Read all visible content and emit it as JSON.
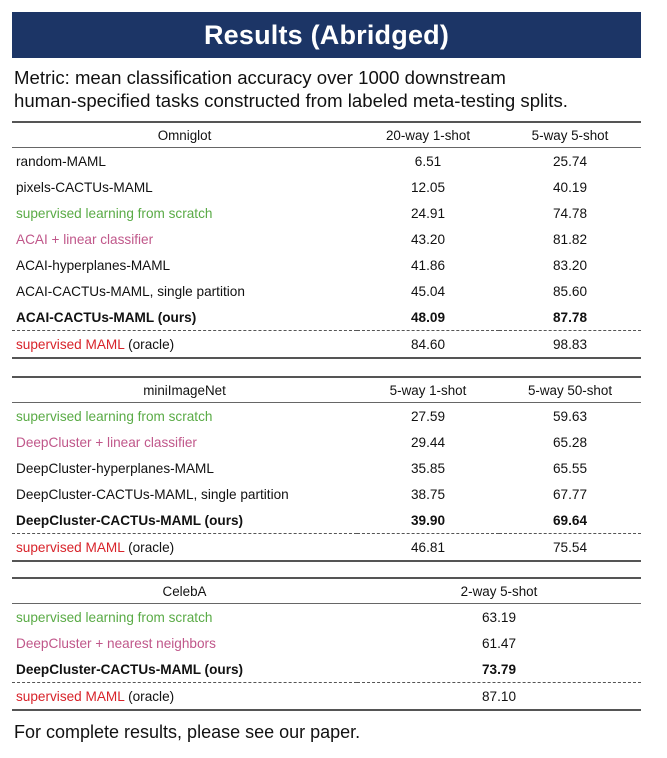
{
  "title": "Results (Abridged)",
  "metric": {
    "line1": "Metric: mean classification accuracy over 1000 downstream",
    "line2": "human-specified tasks constructed from labeled meta-testing splits."
  },
  "colors": {
    "banner": "#1c3566",
    "green": "#5aab46",
    "pink": "#c0578a",
    "red": "#d8232a"
  },
  "tables": [
    {
      "headers": [
        "Omniglot",
        "20-way 1-shot",
        "5-way 5-shot"
      ],
      "rows": [
        {
          "name": "random-MAML",
          "suffix": "",
          "color": "default",
          "values": [
            "6.51",
            "25.74"
          ]
        },
        {
          "name": "pixels-CACTUs-MAML",
          "suffix": "",
          "color": "default",
          "values": [
            "12.05",
            "40.19"
          ]
        },
        {
          "name": "supervised learning from scratch",
          "suffix": "",
          "color": "green",
          "values": [
            "24.91",
            "74.78"
          ]
        },
        {
          "name": "ACAI + linear classifier",
          "suffix": "",
          "color": "pink",
          "values": [
            "43.20",
            "81.82"
          ]
        },
        {
          "name": "ACAI-hyperplanes-MAML",
          "suffix": "",
          "color": "default",
          "values": [
            "41.86",
            "83.20"
          ]
        },
        {
          "name": "ACAI-CACTUs-MAML, single partition",
          "suffix": "",
          "color": "default",
          "values": [
            "45.04",
            "85.60"
          ]
        },
        {
          "name": "ACAI-CACTUs-MAML (ours)",
          "suffix": "",
          "color": "default",
          "bold": true,
          "values": [
            "48.09",
            "87.78"
          ]
        },
        {
          "name": "supervised MAML",
          "suffix": " (oracle)",
          "color": "red",
          "values": [
            "84.60",
            "98.83"
          ]
        }
      ]
    },
    {
      "headers": [
        "miniImageNet",
        "5-way 1-shot",
        "5-way 50-shot"
      ],
      "rows": [
        {
          "name": "supervised learning from scratch",
          "suffix": "",
          "color": "green",
          "values": [
            "27.59",
            "59.63"
          ]
        },
        {
          "name": "DeepCluster + linear classifier",
          "suffix": "",
          "color": "pink",
          "values": [
            "29.44",
            "65.28"
          ]
        },
        {
          "name": "DeepCluster-hyperplanes-MAML",
          "suffix": "",
          "color": "default",
          "values": [
            "35.85",
            "65.55"
          ]
        },
        {
          "name": "DeepCluster-CACTUs-MAML, single partition",
          "suffix": "",
          "color": "default",
          "values": [
            "38.75",
            "67.77"
          ]
        },
        {
          "name": "DeepCluster-CACTUs-MAML (ours)",
          "suffix": "",
          "color": "default",
          "bold": true,
          "values": [
            "39.90",
            "69.64"
          ]
        },
        {
          "name": "supervised MAML",
          "suffix": " (oracle)",
          "color": "red",
          "values": [
            "46.81",
            "75.54"
          ]
        }
      ]
    },
    {
      "headers": [
        "CelebA",
        "2-way 5-shot"
      ],
      "rows": [
        {
          "name": "supervised learning from scratch",
          "suffix": "",
          "color": "green",
          "values": [
            "63.19"
          ]
        },
        {
          "name": "DeepCluster + nearest neighbors",
          "suffix": "",
          "color": "pink",
          "values": [
            "61.47"
          ]
        },
        {
          "name": "DeepCluster-CACTUs-MAML (ours)",
          "suffix": "",
          "color": "default",
          "bold": true,
          "values": [
            "73.79"
          ]
        },
        {
          "name": "supervised MAML",
          "suffix": " (oracle)",
          "color": "red",
          "values": [
            "87.10"
          ]
        }
      ]
    }
  ],
  "footer": "For complete results, please see our paper."
}
